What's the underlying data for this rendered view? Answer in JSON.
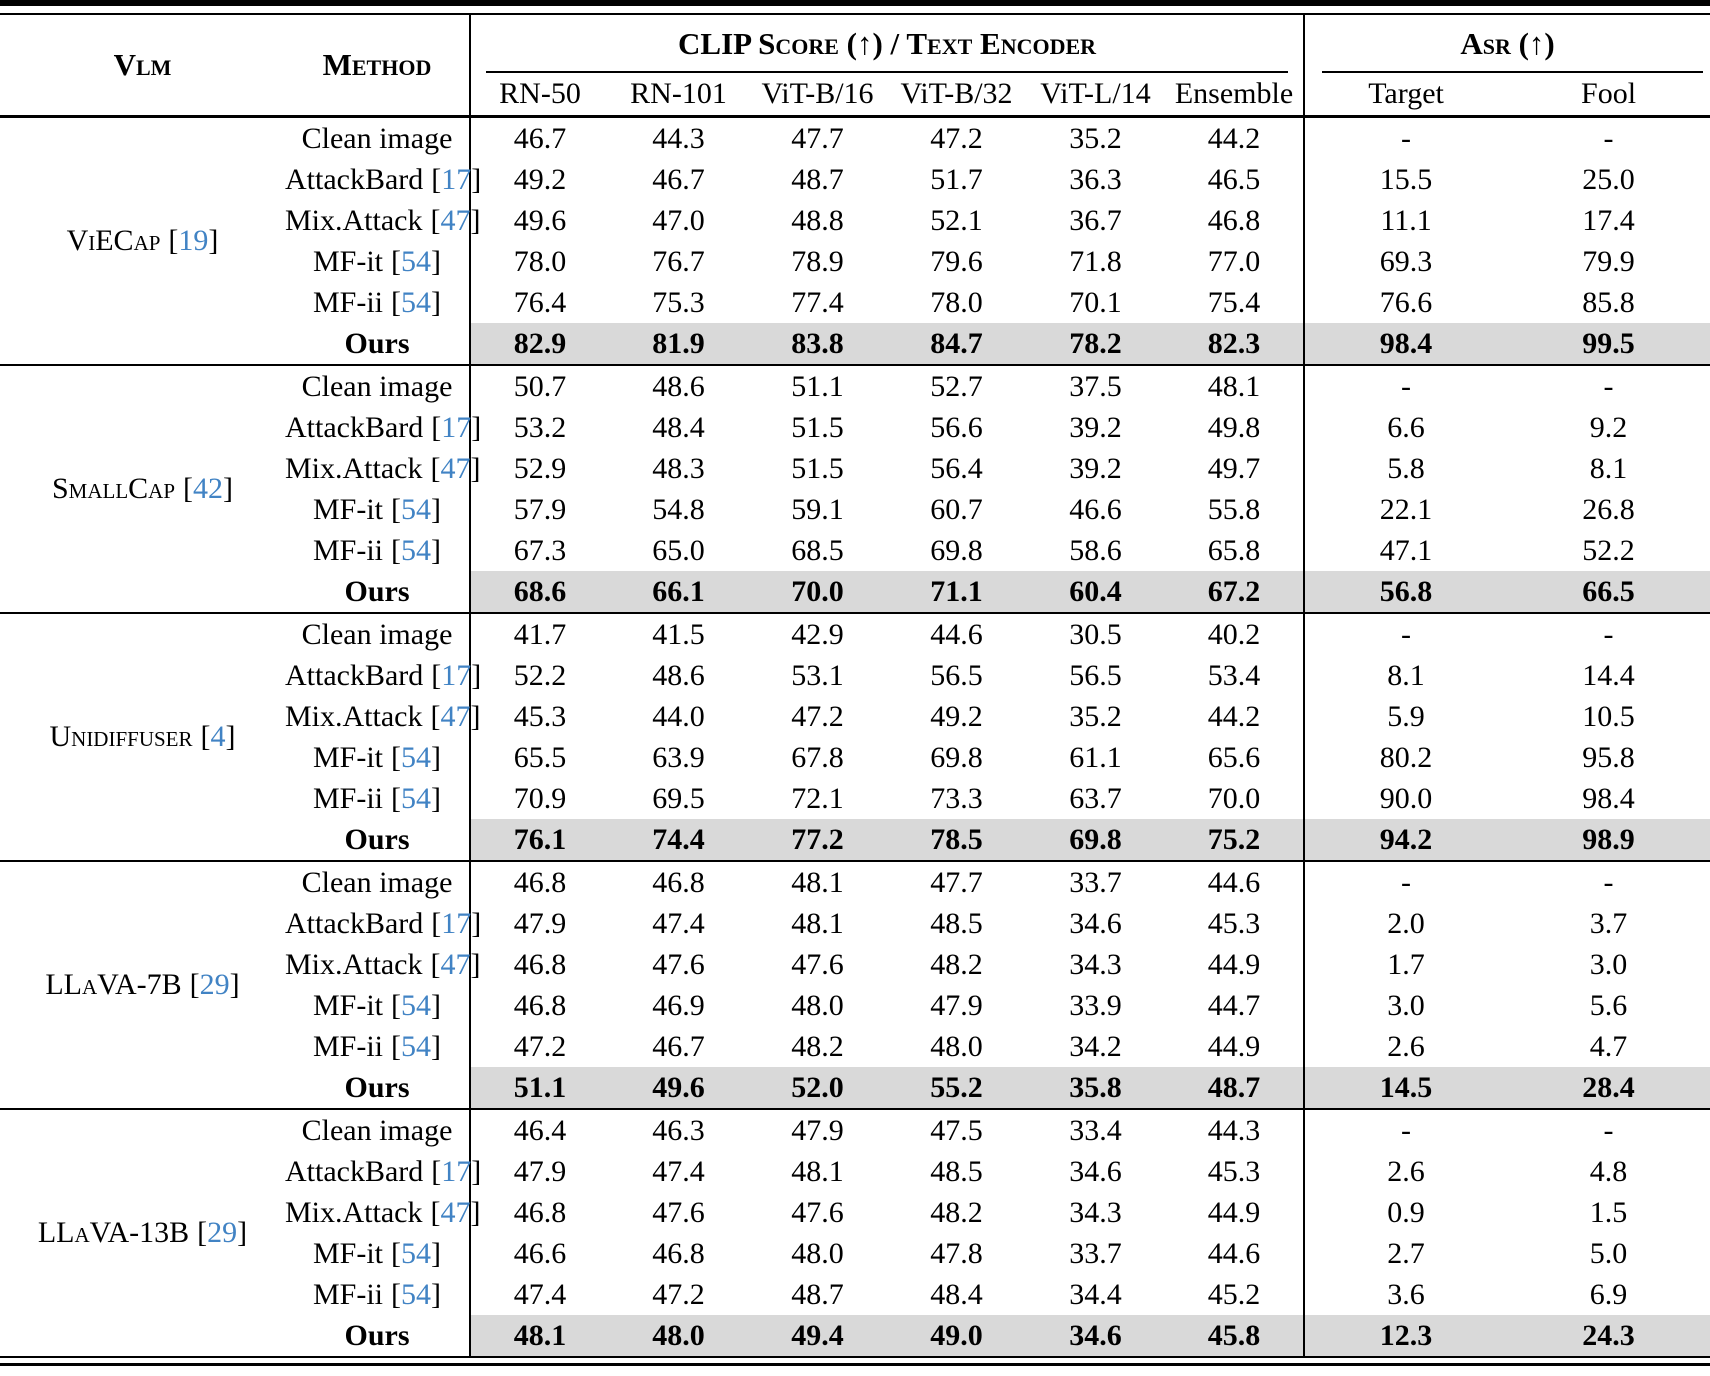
{
  "header": {
    "vlm_label": "Vlm",
    "method_label": "Method",
    "clip_group_label": "CLIP Score (↑) / Text Encoder",
    "asr_group_label": "Asr (↑)",
    "encoder_columns": [
      "RN-50",
      "RN-101",
      "ViT-B/16",
      "ViT-B/32",
      "ViT-L/14",
      "Ensemble"
    ],
    "asr_columns": [
      "Target",
      "Fool"
    ]
  },
  "citation_format": {
    "open": "[",
    "close": "]"
  },
  "colors": {
    "citation_blue": "#4183c4",
    "ours_highlight": "#d9d9d9",
    "rule_black": "#000000"
  },
  "groups": [
    {
      "vlm": "ViECap",
      "cite": "19",
      "rows": [
        {
          "method": "Clean image",
          "cite": null,
          "ours": false,
          "values": [
            "46.7",
            "44.3",
            "47.7",
            "47.2",
            "35.2",
            "44.2",
            "-",
            "-"
          ]
        },
        {
          "method": "AttackBard",
          "cite": "17",
          "ours": false,
          "values": [
            "49.2",
            "46.7",
            "48.7",
            "51.7",
            "36.3",
            "46.5",
            "15.5",
            "25.0"
          ]
        },
        {
          "method": "Mix.Attack",
          "cite": "47",
          "ours": false,
          "values": [
            "49.6",
            "47.0",
            "48.8",
            "52.1",
            "36.7",
            "46.8",
            "11.1",
            "17.4"
          ]
        },
        {
          "method": "MF-it",
          "cite": "54",
          "ours": false,
          "values": [
            "78.0",
            "76.7",
            "78.9",
            "79.6",
            "71.8",
            "77.0",
            "69.3",
            "79.9"
          ]
        },
        {
          "method": "MF-ii",
          "cite": "54",
          "ours": false,
          "values": [
            "76.4",
            "75.3",
            "77.4",
            "78.0",
            "70.1",
            "75.4",
            "76.6",
            "85.8"
          ]
        },
        {
          "method": "Ours",
          "cite": null,
          "ours": true,
          "values": [
            "82.9",
            "81.9",
            "83.8",
            "84.7",
            "78.2",
            "82.3",
            "98.4",
            "99.5"
          ]
        }
      ]
    },
    {
      "vlm": "SmallCap",
      "cite": "42",
      "rows": [
        {
          "method": "Clean image",
          "cite": null,
          "ours": false,
          "values": [
            "50.7",
            "48.6",
            "51.1",
            "52.7",
            "37.5",
            "48.1",
            "-",
            "-"
          ]
        },
        {
          "method": "AttackBard",
          "cite": "17",
          "ours": false,
          "values": [
            "53.2",
            "48.4",
            "51.5",
            "56.6",
            "39.2",
            "49.8",
            "6.6",
            "9.2"
          ]
        },
        {
          "method": "Mix.Attack",
          "cite": "47",
          "ours": false,
          "values": [
            "52.9",
            "48.3",
            "51.5",
            "56.4",
            "39.2",
            "49.7",
            "5.8",
            "8.1"
          ]
        },
        {
          "method": "MF-it",
          "cite": "54",
          "ours": false,
          "values": [
            "57.9",
            "54.8",
            "59.1",
            "60.7",
            "46.6",
            "55.8",
            "22.1",
            "26.8"
          ]
        },
        {
          "method": "MF-ii",
          "cite": "54",
          "ours": false,
          "values": [
            "67.3",
            "65.0",
            "68.5",
            "69.8",
            "58.6",
            "65.8",
            "47.1",
            "52.2"
          ]
        },
        {
          "method": "Ours",
          "cite": null,
          "ours": true,
          "values": [
            "68.6",
            "66.1",
            "70.0",
            "71.1",
            "60.4",
            "67.2",
            "56.8",
            "66.5"
          ]
        }
      ]
    },
    {
      "vlm": "Unidiffuser",
      "cite": "4",
      "rows": [
        {
          "method": "Clean image",
          "cite": null,
          "ours": false,
          "values": [
            "41.7",
            "41.5",
            "42.9",
            "44.6",
            "30.5",
            "40.2",
            "-",
            "-"
          ]
        },
        {
          "method": "AttackBard",
          "cite": "17",
          "ours": false,
          "values": [
            "52.2",
            "48.6",
            "53.1",
            "56.5",
            "56.5",
            "53.4",
            "8.1",
            "14.4"
          ]
        },
        {
          "method": "Mix.Attack",
          "cite": "47",
          "ours": false,
          "values": [
            "45.3",
            "44.0",
            "47.2",
            "49.2",
            "35.2",
            "44.2",
            "5.9",
            "10.5"
          ]
        },
        {
          "method": "MF-it",
          "cite": "54",
          "ours": false,
          "values": [
            "65.5",
            "63.9",
            "67.8",
            "69.8",
            "61.1",
            "65.6",
            "80.2",
            "95.8"
          ]
        },
        {
          "method": "MF-ii",
          "cite": "54",
          "ours": false,
          "values": [
            "70.9",
            "69.5",
            "72.1",
            "73.3",
            "63.7",
            "70.0",
            "90.0",
            "98.4"
          ]
        },
        {
          "method": "Ours",
          "cite": null,
          "ours": true,
          "values": [
            "76.1",
            "74.4",
            "77.2",
            "78.5",
            "69.8",
            "75.2",
            "94.2",
            "98.9"
          ]
        }
      ]
    },
    {
      "vlm": "LLaVA-7B",
      "cite": "29",
      "rows": [
        {
          "method": "Clean image",
          "cite": null,
          "ours": false,
          "values": [
            "46.8",
            "46.8",
            "48.1",
            "47.7",
            "33.7",
            "44.6",
            "-",
            "-"
          ]
        },
        {
          "method": "AttackBard",
          "cite": "17",
          "ours": false,
          "values": [
            "47.9",
            "47.4",
            "48.1",
            "48.5",
            "34.6",
            "45.3",
            "2.0",
            "3.7"
          ]
        },
        {
          "method": "Mix.Attack",
          "cite": "47",
          "ours": false,
          "values": [
            "46.8",
            "47.6",
            "47.6",
            "48.2",
            "34.3",
            "44.9",
            "1.7",
            "3.0"
          ]
        },
        {
          "method": "MF-it",
          "cite": "54",
          "ours": false,
          "values": [
            "46.8",
            "46.9",
            "48.0",
            "47.9",
            "33.9",
            "44.7",
            "3.0",
            "5.6"
          ]
        },
        {
          "method": "MF-ii",
          "cite": "54",
          "ours": false,
          "values": [
            "47.2",
            "46.7",
            "48.2",
            "48.0",
            "34.2",
            "44.9",
            "2.6",
            "4.7"
          ]
        },
        {
          "method": "Ours",
          "cite": null,
          "ours": true,
          "values": [
            "51.1",
            "49.6",
            "52.0",
            "55.2",
            "35.8",
            "48.7",
            "14.5",
            "28.4"
          ]
        }
      ]
    },
    {
      "vlm": "LLaVA-13B",
      "cite": "29",
      "rows": [
        {
          "method": "Clean image",
          "cite": null,
          "ours": false,
          "values": [
            "46.4",
            "46.3",
            "47.9",
            "47.5",
            "33.4",
            "44.3",
            "-",
            "-"
          ]
        },
        {
          "method": "AttackBard",
          "cite": "17",
          "ours": false,
          "values": [
            "47.9",
            "47.4",
            "48.1",
            "48.5",
            "34.6",
            "45.3",
            "2.6",
            "4.8"
          ]
        },
        {
          "method": "Mix.Attack",
          "cite": "47",
          "ours": false,
          "values": [
            "46.8",
            "47.6",
            "47.6",
            "48.2",
            "34.3",
            "44.9",
            "0.9",
            "1.5"
          ]
        },
        {
          "method": "MF-it",
          "cite": "54",
          "ours": false,
          "values": [
            "46.6",
            "46.8",
            "48.0",
            "47.8",
            "33.7",
            "44.6",
            "2.7",
            "5.0"
          ]
        },
        {
          "method": "MF-ii",
          "cite": "54",
          "ours": false,
          "values": [
            "47.4",
            "47.2",
            "48.7",
            "48.4",
            "34.4",
            "45.2",
            "3.6",
            "6.9"
          ]
        },
        {
          "method": "Ours",
          "cite": null,
          "ours": true,
          "values": [
            "48.1",
            "48.0",
            "49.4",
            "49.0",
            "34.6",
            "45.8",
            "12.3",
            "24.3"
          ]
        }
      ]
    }
  ]
}
